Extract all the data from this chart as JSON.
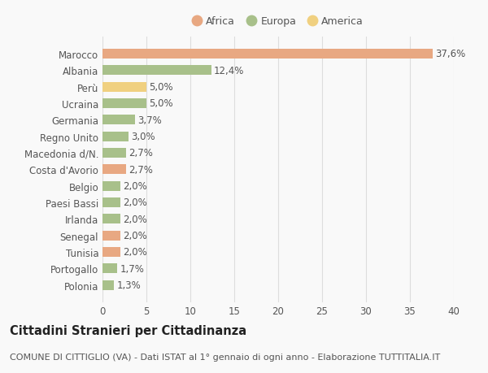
{
  "countries": [
    "Polonia",
    "Portogallo",
    "Tunisia",
    "Senegal",
    "Irlanda",
    "Paesi Bassi",
    "Belgio",
    "Costa d'Avorio",
    "Macedonia d/N.",
    "Regno Unito",
    "Germania",
    "Ucraina",
    "Perù",
    "Albania",
    "Marocco"
  ],
  "values": [
    1.3,
    1.7,
    2.0,
    2.0,
    2.0,
    2.0,
    2.0,
    2.7,
    2.7,
    3.0,
    3.7,
    5.0,
    5.0,
    12.4,
    37.6
  ],
  "continents": [
    "Europa",
    "Europa",
    "Africa",
    "Africa",
    "Europa",
    "Europa",
    "Europa",
    "Africa",
    "Europa",
    "Europa",
    "Europa",
    "Europa",
    "America",
    "Europa",
    "Africa"
  ],
  "colors": {
    "Africa": "#E8A882",
    "Europa": "#A8C08A",
    "America": "#F0D080"
  },
  "legend_order": [
    "Africa",
    "Europa",
    "America"
  ],
  "legend_colors": [
    "#E8A882",
    "#A8C08A",
    "#F0D080"
  ],
  "title": "Cittadini Stranieri per Cittadinanza",
  "subtitle": "COMUNE DI CITTIGLIO (VA) - Dati ISTAT al 1° gennaio di ogni anno - Elaborazione TUTTITALIA.IT",
  "xlim": [
    0,
    40
  ],
  "xticks": [
    0,
    5,
    10,
    15,
    20,
    25,
    30,
    35,
    40
  ],
  "grid_color": "#DDDDDD",
  "bg_color": "#F9F9F9",
  "bar_height": 0.6,
  "label_fontsize": 8.5,
  "title_fontsize": 10.5,
  "subtitle_fontsize": 8,
  "tick_fontsize": 8.5,
  "legend_fontsize": 9
}
